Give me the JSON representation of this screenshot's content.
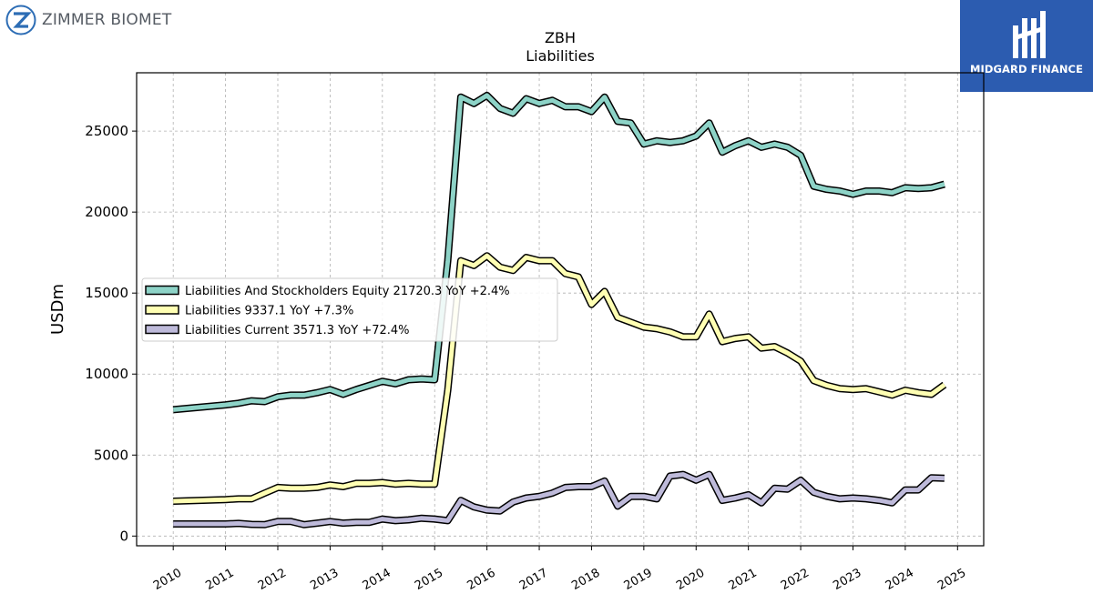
{
  "brand": {
    "left_logo_text": "ZIMMER BIOMET",
    "right_logo_text": "MIDGARD FINANCE",
    "right_logo_bg": "#2c5cb0"
  },
  "chart_data": {
    "type": "line",
    "title": "ZBH",
    "subtitle": "Liabilities",
    "xlabel": "",
    "ylabel": "USDm",
    "xlim": [
      2009.3,
      2025.5
    ],
    "ylim": [
      -600,
      28600
    ],
    "x_ticks": [
      "2010",
      "2011",
      "2012",
      "2013",
      "2014",
      "2015",
      "2016",
      "2017",
      "2018",
      "2019",
      "2020",
      "2021",
      "2022",
      "2023",
      "2024",
      "2025"
    ],
    "y_ticks": [
      "0",
      "5000",
      "10000",
      "15000",
      "20000",
      "25000"
    ],
    "grid": true,
    "legend_position": "center-left",
    "series": [
      {
        "name": "Liabilities And Stockholders Equity",
        "legend_label": "Liabilities And Stockholders Equity  21720.3 YoY +2.4%",
        "color": "#8dd3c7",
        "points": [
          [
            2010,
            7800
          ],
          [
            2011,
            8100
          ],
          [
            2011.25,
            8200
          ],
          [
            2011.5,
            8350
          ],
          [
            2011.75,
            8300
          ],
          [
            2012,
            8600
          ],
          [
            2012.25,
            8700
          ],
          [
            2012.5,
            8700
          ],
          [
            2012.75,
            8850
          ],
          [
            2013,
            9050
          ],
          [
            2013.25,
            8750
          ],
          [
            2013.5,
            9050
          ],
          [
            2013.75,
            9300
          ],
          [
            2014,
            9550
          ],
          [
            2014.25,
            9400
          ],
          [
            2014.5,
            9650
          ],
          [
            2014.75,
            9700
          ],
          [
            2015,
            9650
          ],
          [
            2015.25,
            17000
          ],
          [
            2015.5,
            27100
          ],
          [
            2015.75,
            26700
          ],
          [
            2016,
            27200
          ],
          [
            2016.25,
            26400
          ],
          [
            2016.5,
            26100
          ],
          [
            2016.75,
            27000
          ],
          [
            2017,
            26700
          ],
          [
            2017.25,
            26900
          ],
          [
            2017.5,
            26500
          ],
          [
            2017.75,
            26500
          ],
          [
            2018,
            26200
          ],
          [
            2018.25,
            27100
          ],
          [
            2018.5,
            25600
          ],
          [
            2018.75,
            25500
          ],
          [
            2019,
            24200
          ],
          [
            2019.25,
            24400
          ],
          [
            2019.5,
            24300
          ],
          [
            2019.75,
            24400
          ],
          [
            2020,
            24700
          ],
          [
            2020.25,
            25500
          ],
          [
            2020.5,
            23700
          ],
          [
            2020.75,
            24100
          ],
          [
            2021,
            24400
          ],
          [
            2021.25,
            24000
          ],
          [
            2021.5,
            24200
          ],
          [
            2021.75,
            24000
          ],
          [
            2022,
            23500
          ],
          [
            2022.25,
            21600
          ],
          [
            2022.5,
            21400
          ],
          [
            2022.75,
            21300
          ],
          [
            2023,
            21100
          ],
          [
            2023.25,
            21300
          ],
          [
            2023.5,
            21300
          ],
          [
            2023.75,
            21200
          ],
          [
            2024,
            21500
          ],
          [
            2024.25,
            21450
          ],
          [
            2024.5,
            21500
          ],
          [
            2024.75,
            21720.3
          ]
        ]
      },
      {
        "name": "Liabilities",
        "legend_label": "Liabilities  9337.1 YoY +7.3%",
        "color": "#ffffb3",
        "points": [
          [
            2010,
            2150
          ],
          [
            2011,
            2250
          ],
          [
            2011.25,
            2300
          ],
          [
            2011.5,
            2300
          ],
          [
            2011.75,
            2650
          ],
          [
            2012,
            3000
          ],
          [
            2012.25,
            2950
          ],
          [
            2012.5,
            2950
          ],
          [
            2012.75,
            3000
          ],
          [
            2013,
            3150
          ],
          [
            2013.25,
            3050
          ],
          [
            2013.5,
            3250
          ],
          [
            2013.75,
            3250
          ],
          [
            2014,
            3300
          ],
          [
            2014.25,
            3200
          ],
          [
            2014.5,
            3250
          ],
          [
            2014.75,
            3200
          ],
          [
            2015,
            3200
          ],
          [
            2015.25,
            9000
          ],
          [
            2015.5,
            17000
          ],
          [
            2015.75,
            16700
          ],
          [
            2016,
            17300
          ],
          [
            2016.25,
            16600
          ],
          [
            2016.5,
            16400
          ],
          [
            2016.75,
            17200
          ],
          [
            2017,
            17000
          ],
          [
            2017.25,
            17000
          ],
          [
            2017.5,
            16200
          ],
          [
            2017.75,
            16000
          ],
          [
            2018,
            14300
          ],
          [
            2018.25,
            15100
          ],
          [
            2018.5,
            13500
          ],
          [
            2018.75,
            13200
          ],
          [
            2019,
            12900
          ],
          [
            2019.25,
            12800
          ],
          [
            2019.5,
            12600
          ],
          [
            2019.75,
            12300
          ],
          [
            2020,
            12300
          ],
          [
            2020.25,
            13700
          ],
          [
            2020.5,
            12000
          ],
          [
            2020.75,
            12200
          ],
          [
            2021,
            12300
          ],
          [
            2021.25,
            11600
          ],
          [
            2021.5,
            11700
          ],
          [
            2021.75,
            11300
          ],
          [
            2022,
            10800
          ],
          [
            2022.25,
            9600
          ],
          [
            2022.5,
            9300
          ],
          [
            2022.75,
            9100
          ],
          [
            2023,
            9050
          ],
          [
            2023.25,
            9100
          ],
          [
            2023.5,
            8900
          ],
          [
            2023.75,
            8700
          ],
          [
            2024,
            9000
          ],
          [
            2024.25,
            8850
          ],
          [
            2024.5,
            8750
          ],
          [
            2024.75,
            9337.1
          ]
        ]
      },
      {
        "name": "Liabilities Current",
        "legend_label": "Liabilities Current  3571.3 YoY +72.4%",
        "color": "#bebada",
        "points": [
          [
            2010,
            750
          ],
          [
            2011,
            750
          ],
          [
            2011.25,
            780
          ],
          [
            2011.5,
            720
          ],
          [
            2011.75,
            700
          ],
          [
            2012,
            900
          ],
          [
            2012.25,
            900
          ],
          [
            2012.5,
            700
          ],
          [
            2012.75,
            800
          ],
          [
            2013,
            900
          ],
          [
            2013.25,
            800
          ],
          [
            2013.5,
            850
          ],
          [
            2013.75,
            850
          ],
          [
            2014,
            1050
          ],
          [
            2014.25,
            950
          ],
          [
            2014.5,
            1000
          ],
          [
            2014.75,
            1100
          ],
          [
            2015,
            1050
          ],
          [
            2015.25,
            950
          ],
          [
            2015.5,
            2200
          ],
          [
            2015.75,
            1800
          ],
          [
            2016,
            1600
          ],
          [
            2016.25,
            1550
          ],
          [
            2016.5,
            2100
          ],
          [
            2016.75,
            2350
          ],
          [
            2017,
            2450
          ],
          [
            2017.25,
            2650
          ],
          [
            2017.5,
            3000
          ],
          [
            2017.75,
            3050
          ],
          [
            2018,
            3050
          ],
          [
            2018.25,
            3400
          ],
          [
            2018.5,
            1850
          ],
          [
            2018.75,
            2450
          ],
          [
            2019,
            2450
          ],
          [
            2019.25,
            2300
          ],
          [
            2019.5,
            3700
          ],
          [
            2019.75,
            3800
          ],
          [
            2020,
            3450
          ],
          [
            2020.25,
            3800
          ],
          [
            2020.5,
            2200
          ],
          [
            2020.75,
            2350
          ],
          [
            2021,
            2550
          ],
          [
            2021.25,
            2050
          ],
          [
            2021.5,
            2950
          ],
          [
            2021.75,
            2900
          ],
          [
            2022,
            3450
          ],
          [
            2022.25,
            2700
          ],
          [
            2022.5,
            2450
          ],
          [
            2022.75,
            2300
          ],
          [
            2023,
            2350
          ],
          [
            2023.25,
            2300
          ],
          [
            2023.5,
            2200
          ],
          [
            2023.75,
            2050
          ],
          [
            2024,
            2850
          ],
          [
            2024.25,
            2850
          ],
          [
            2024.5,
            3600
          ],
          [
            2024.75,
            3571.3
          ]
        ]
      }
    ]
  }
}
